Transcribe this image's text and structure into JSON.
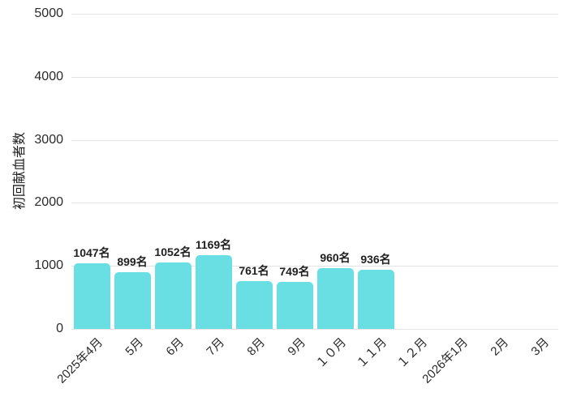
{
  "chart_data": {
    "type": "bar",
    "title": "",
    "ylabel": "初回献血者数",
    "xlabel": "",
    "categories": [
      "2025年4月",
      "5月",
      "6月",
      "7月",
      "8月",
      "9月",
      "１０月",
      "１１月",
      "１２月",
      "2026年1月",
      "2月",
      "3月"
    ],
    "values": [
      1047,
      899,
      1052,
      1169,
      761,
      749,
      960,
      936,
      null,
      null,
      null,
      null
    ],
    "data_labels": [
      "1047名",
      "899名",
      "1052名",
      "1169名",
      "761名",
      "749名",
      "960名",
      "936名",
      null,
      null,
      null,
      null
    ],
    "data_label_unit": "名",
    "yticks": [
      0,
      1000,
      2000,
      3000,
      4000,
      5000
    ],
    "ylim": [
      0,
      5000
    ],
    "grid": true,
    "legend_position": "none",
    "bar_color": "#69DFE4",
    "grid_color": "#E3E3E3",
    "text_color": "#1F1F1F"
  }
}
